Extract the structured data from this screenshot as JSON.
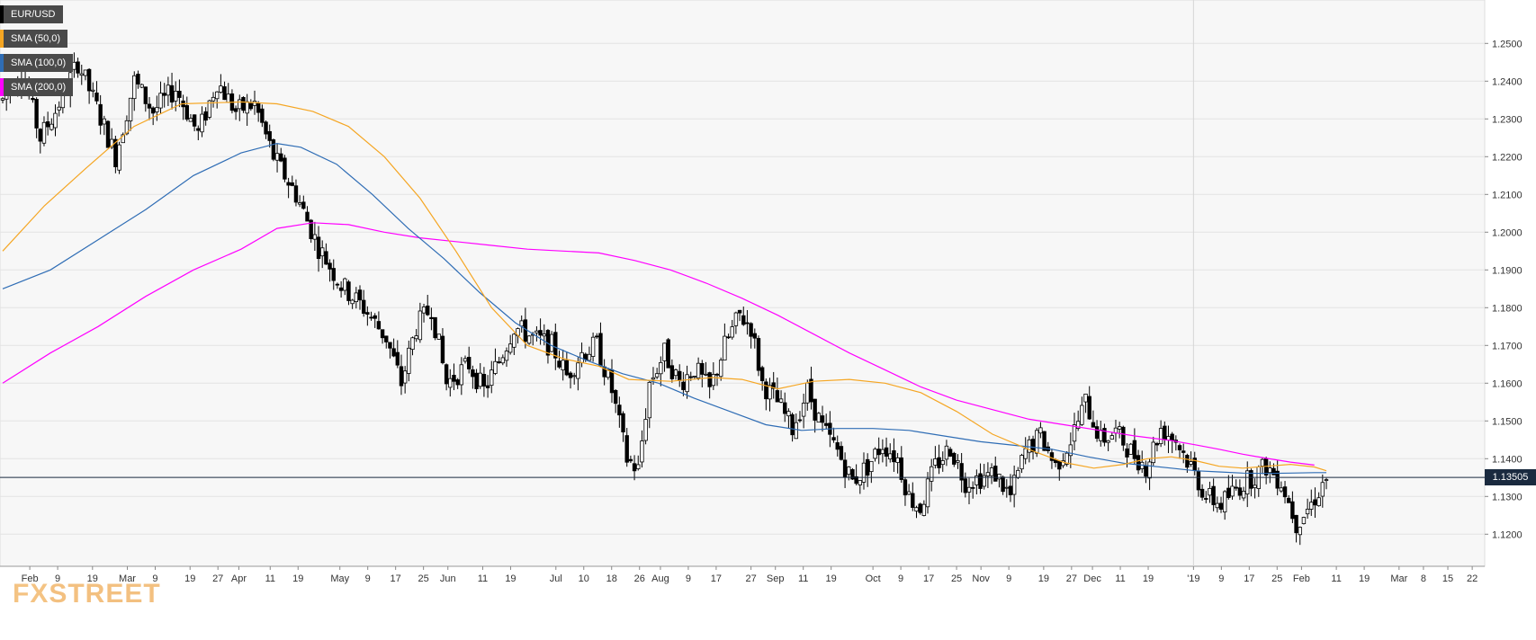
{
  "chart_data": {
    "type": "candlestick",
    "symbol": "EUR/USD",
    "legend": [
      {
        "label": "EUR/USD",
        "color": "#000000"
      },
      {
        "label": "SMA (50,0)",
        "color": "#f5a623"
      },
      {
        "label": "SMA (100,0)",
        "color": "#2f6db5"
      },
      {
        "label": "SMA (200,0)",
        "color": "#ff00ff"
      }
    ],
    "ylim": [
      1.1115,
      1.2615
    ],
    "y_ticks": [
      "1.2500",
      "1.2400",
      "1.2300",
      "1.2200",
      "1.2100",
      "1.2000",
      "1.1900",
      "1.1800",
      "1.1700",
      "1.1600",
      "1.1500",
      "1.1400",
      "1.1300",
      "1.1200"
    ],
    "y_tick_values": [
      1.25,
      1.24,
      1.23,
      1.22,
      1.21,
      1.2,
      1.19,
      1.18,
      1.17,
      1.16,
      1.15,
      1.14,
      1.13,
      1.12
    ],
    "x_ticks": [
      {
        "label": "Feb",
        "date": "2018-02-01"
      },
      {
        "label": "9",
        "date": "2018-02-09"
      },
      {
        "label": "19",
        "date": "2018-02-19"
      },
      {
        "label": "Mar",
        "date": "2018-03-01"
      },
      {
        "label": "9",
        "date": "2018-03-09"
      },
      {
        "label": "19",
        "date": "2018-03-19"
      },
      {
        "label": "27",
        "date": "2018-03-27"
      },
      {
        "label": "Apr",
        "date": "2018-04-02"
      },
      {
        "label": "11",
        "date": "2018-04-11"
      },
      {
        "label": "19",
        "date": "2018-04-19"
      },
      {
        "label": "May",
        "date": "2018-05-01"
      },
      {
        "label": "9",
        "date": "2018-05-09"
      },
      {
        "label": "17",
        "date": "2018-05-17"
      },
      {
        "label": "25",
        "date": "2018-05-25"
      },
      {
        "label": "Jun",
        "date": "2018-06-01"
      },
      {
        "label": "11",
        "date": "2018-06-11"
      },
      {
        "label": "19",
        "date": "2018-06-19"
      },
      {
        "label": "Jul",
        "date": "2018-07-02"
      },
      {
        "label": "10",
        "date": "2018-07-10"
      },
      {
        "label": "18",
        "date": "2018-07-18"
      },
      {
        "label": "26",
        "date": "2018-07-26"
      },
      {
        "label": "Aug",
        "date": "2018-08-01"
      },
      {
        "label": "9",
        "date": "2018-08-09"
      },
      {
        "label": "17",
        "date": "2018-08-17"
      },
      {
        "label": "27",
        "date": "2018-08-27"
      },
      {
        "label": "Sep",
        "date": "2018-09-03"
      },
      {
        "label": "11",
        "date": "2018-09-11"
      },
      {
        "label": "19",
        "date": "2018-09-19"
      },
      {
        "label": "Oct",
        "date": "2018-10-01"
      },
      {
        "label": "9",
        "date": "2018-10-09"
      },
      {
        "label": "17",
        "date": "2018-10-17"
      },
      {
        "label": "25",
        "date": "2018-10-25"
      },
      {
        "label": "Nov",
        "date": "2018-11-01"
      },
      {
        "label": "9",
        "date": "2018-11-09"
      },
      {
        "label": "19",
        "date": "2018-11-19"
      },
      {
        "label": "27",
        "date": "2018-11-27"
      },
      {
        "label": "Dec",
        "date": "2018-12-03"
      },
      {
        "label": "11",
        "date": "2018-12-11"
      },
      {
        "label": "19",
        "date": "2018-12-19"
      },
      {
        "label": "'19",
        "date": "2019-01-01"
      },
      {
        "label": "9",
        "date": "2019-01-09"
      },
      {
        "label": "17",
        "date": "2019-01-17"
      },
      {
        "label": "25",
        "date": "2019-01-25"
      },
      {
        "label": "Feb",
        "date": "2019-02-01"
      },
      {
        "label": "11",
        "date": "2019-02-11"
      },
      {
        "label": "19",
        "date": "2019-02-19"
      },
      {
        "label": "Mar",
        "date": "2019-03-01"
      },
      {
        "label": "8",
        "date": "2019-03-08"
      },
      {
        "label": "15",
        "date": "2019-03-15"
      },
      {
        "label": "22",
        "date": "2019-03-22"
      }
    ],
    "current_price": {
      "label": "1.13505",
      "value": 1.13505
    },
    "sma50_points": [
      [
        1.195,
        0
      ],
      [
        1.207,
        35
      ],
      [
        1.217,
        70
      ],
      [
        1.228,
        110
      ],
      [
        1.234,
        150
      ],
      [
        1.2345,
        200
      ],
      [
        1.234,
        230
      ],
      [
        1.232,
        260
      ],
      [
        1.228,
        290
      ],
      [
        1.22,
        320
      ],
      [
        1.209,
        350
      ],
      [
        1.195,
        380
      ],
      [
        1.18,
        410
      ],
      [
        1.17,
        440
      ],
      [
        1.1665,
        470
      ],
      [
        1.1645,
        500
      ],
      [
        1.161,
        525
      ],
      [
        1.1605,
        560
      ],
      [
        1.1615,
        595
      ],
      [
        1.161,
        620
      ],
      [
        1.1585,
        650
      ],
      [
        1.1605,
        680
      ],
      [
        1.161,
        710
      ],
      [
        1.16,
        740
      ],
      [
        1.1575,
        770
      ],
      [
        1.1525,
        800
      ],
      [
        1.1465,
        830
      ],
      [
        1.1425,
        860
      ],
      [
        1.139,
        890
      ],
      [
        1.1375,
        915
      ],
      [
        1.1385,
        940
      ],
      [
        1.14,
        960
      ],
      [
        1.1405,
        980
      ],
      [
        1.1395,
        1000
      ],
      [
        1.138,
        1020
      ],
      [
        1.1375,
        1040
      ],
      [
        1.138,
        1060
      ],
      [
        1.1385,
        1080
      ],
      [
        1.1378,
        1100
      ],
      [
        1.1368,
        1110
      ]
    ],
    "sma100_points": [
      [
        1.185,
        0
      ],
      [
        1.19,
        40
      ],
      [
        1.198,
        80
      ],
      [
        1.206,
        120
      ],
      [
        1.215,
        160
      ],
      [
        1.221,
        200
      ],
      [
        1.2235,
        230
      ],
      [
        1.2225,
        250
      ],
      [
        1.218,
        280
      ],
      [
        1.21,
        310
      ],
      [
        1.201,
        340
      ],
      [
        1.193,
        370
      ],
      [
        1.184,
        400
      ],
      [
        1.176,
        430
      ],
      [
        1.17,
        460
      ],
      [
        1.166,
        490
      ],
      [
        1.1625,
        520
      ],
      [
        1.16,
        550
      ],
      [
        1.156,
        580
      ],
      [
        1.1525,
        610
      ],
      [
        1.149,
        640
      ],
      [
        1.1475,
        670
      ],
      [
        1.148,
        700
      ],
      [
        1.148,
        730
      ],
      [
        1.1475,
        760
      ],
      [
        1.146,
        790
      ],
      [
        1.1445,
        820
      ],
      [
        1.1435,
        850
      ],
      [
        1.1425,
        880
      ],
      [
        1.1405,
        910
      ],
      [
        1.1388,
        940
      ],
      [
        1.1375,
        980
      ],
      [
        1.1368,
        1000
      ],
      [
        1.1365,
        1020
      ],
      [
        1.1362,
        1040
      ],
      [
        1.1361,
        1060
      ],
      [
        1.1362,
        1080
      ],
      [
        1.1363,
        1100
      ],
      [
        1.1363,
        1110
      ]
    ],
    "sma200_points": [
      [
        1.16,
        0
      ],
      [
        1.168,
        40
      ],
      [
        1.175,
        80
      ],
      [
        1.183,
        120
      ],
      [
        1.19,
        160
      ],
      [
        1.1955,
        200
      ],
      [
        1.201,
        230
      ],
      [
        1.2025,
        260
      ],
      [
        1.202,
        290
      ],
      [
        1.2,
        320
      ],
      [
        1.1985,
        350
      ],
      [
        1.1975,
        380
      ],
      [
        1.1965,
        410
      ],
      [
        1.1955,
        440
      ],
      [
        1.195,
        470
      ],
      [
        1.1945,
        500
      ],
      [
        1.1925,
        530
      ],
      [
        1.19,
        560
      ],
      [
        1.1865,
        590
      ],
      [
        1.1825,
        620
      ],
      [
        1.178,
        650
      ],
      [
        1.173,
        680
      ],
      [
        1.168,
        710
      ],
      [
        1.1635,
        740
      ],
      [
        1.159,
        770
      ],
      [
        1.1555,
        800
      ],
      [
        1.153,
        830
      ],
      [
        1.1505,
        860
      ],
      [
        1.149,
        890
      ],
      [
        1.1475,
        920
      ],
      [
        1.146,
        950
      ],
      [
        1.1448,
        980
      ],
      [
        1.1437,
        1000
      ],
      [
        1.1425,
        1020
      ],
      [
        1.1412,
        1040
      ],
      [
        1.1401,
        1060
      ],
      [
        1.1391,
        1080
      ],
      [
        1.1383,
        1100
      ]
    ]
  },
  "watermark": {
    "part1": "FX",
    "part2": "STREET"
  }
}
